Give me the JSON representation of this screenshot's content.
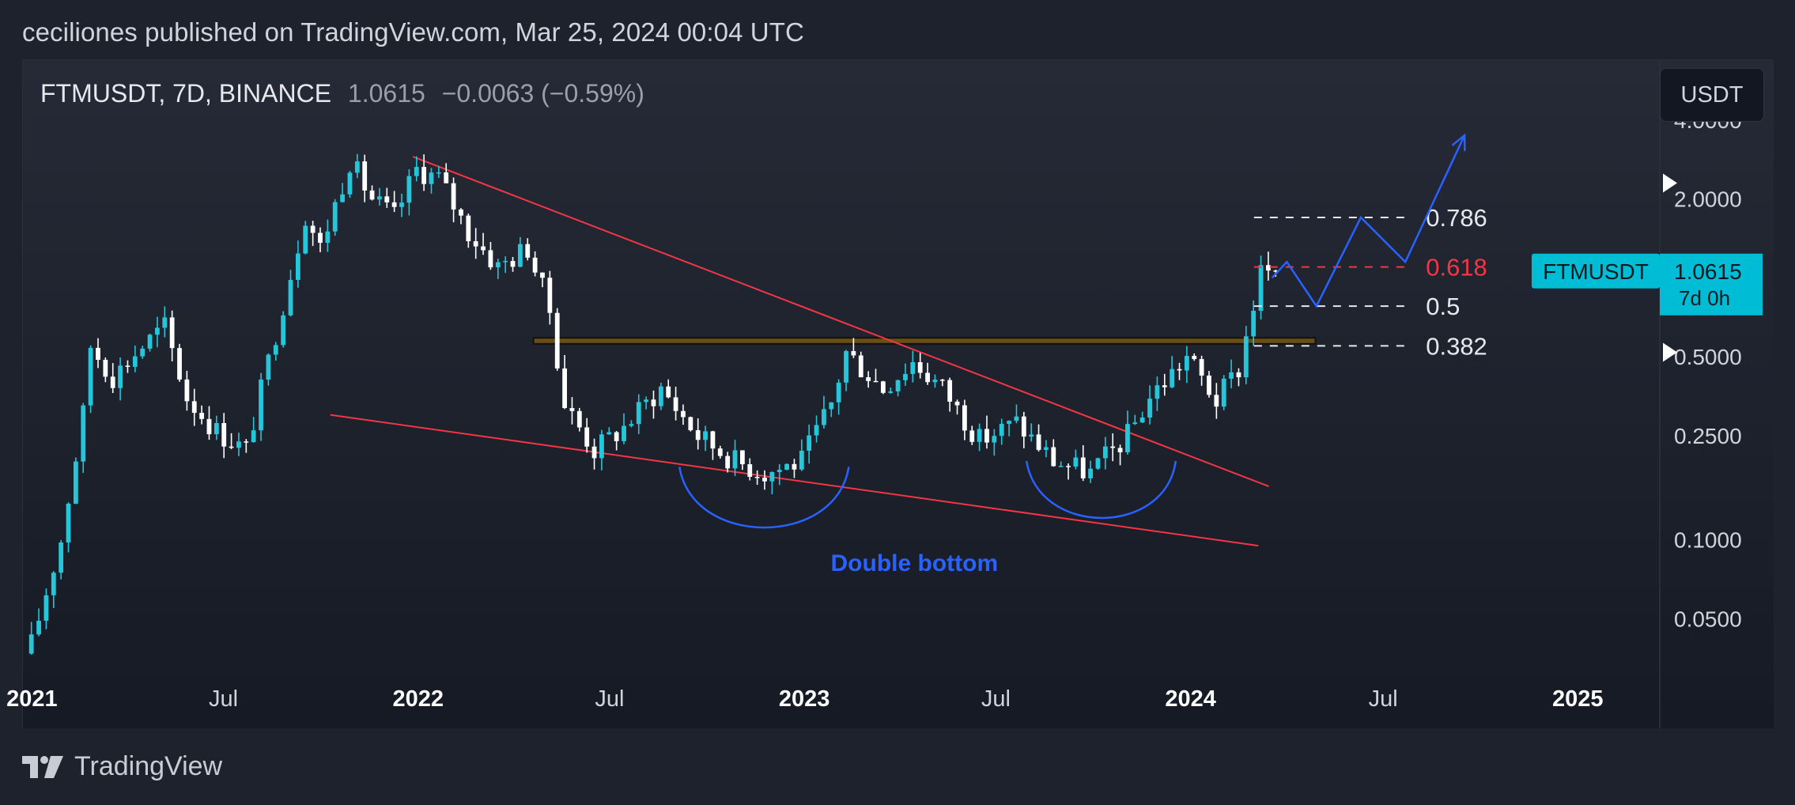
{
  "publication": {
    "text": "ceciliones published on TradingView.com, Mar 25, 2024 00:04 UTC"
  },
  "symbol": {
    "name": "FTMUSDT, 7D, BINANCE",
    "price": "1.0615",
    "change": "−0.0063 (−0.59%)"
  },
  "currency_button": "USDT",
  "footer": {
    "brand": "TradingView"
  },
  "colors": {
    "background": "#1e222d",
    "up_candle": "#26c6da",
    "down_candle": "#ffffff",
    "trendline": "#f23645",
    "drawing": "#2962ff",
    "resistance_box": "#6b4e16",
    "fib_white": "#e6e8ee",
    "fib_red": "#f23645",
    "price_label": "#00bcd4"
  },
  "chart_data": {
    "type": "candlestick",
    "title": "FTMUSDT, 7D, BINANCE",
    "y_scale": "log",
    "ylim": [
      0.03,
      5.5
    ],
    "xlim": [
      "2020-12-28",
      "2025-03-15"
    ],
    "y_ticks": [
      "4.0000",
      "2.0000",
      "0.5000",
      "0.2500",
      "0.1000",
      "0.0500"
    ],
    "y_tick_values": [
      4.0,
      2.0,
      0.5,
      0.25,
      0.1,
      0.05
    ],
    "x_ticks": [
      {
        "label": "2021",
        "date": "2021-01-01",
        "bold": true
      },
      {
        "label": "Jul",
        "date": "2021-07-01",
        "bold": false
      },
      {
        "label": "2022",
        "date": "2022-01-01",
        "bold": true
      },
      {
        "label": "Jul",
        "date": "2022-07-01",
        "bold": false
      },
      {
        "label": "2023",
        "date": "2023-01-01",
        "bold": true
      },
      {
        "label": "Jul",
        "date": "2023-07-01",
        "bold": false
      },
      {
        "label": "2024",
        "date": "2024-01-01",
        "bold": true
      },
      {
        "label": "Jul",
        "date": "2024-07-01",
        "bold": false
      },
      {
        "label": "2025",
        "date": "2025-01-01",
        "bold": true
      }
    ],
    "candle_start": "2020-12-28",
    "candle_interval_days": 7,
    "close_path": [
      [
        "2020-12-28",
        0.04
      ],
      [
        "2021-01-25",
        0.1
      ],
      [
        "2021-02-15",
        0.3
      ],
      [
        "2021-02-22",
        0.55
      ],
      [
        "2021-03-15",
        0.42
      ],
      [
        "2021-04-12",
        0.55
      ],
      [
        "2021-05-03",
        0.65
      ],
      [
        "2021-05-24",
        0.35
      ],
      [
        "2021-06-21",
        0.26
      ],
      [
        "2021-07-19",
        0.22
      ],
      [
        "2021-08-23",
        0.8
      ],
      [
        "2021-09-13",
        1.75
      ],
      [
        "2021-09-27",
        1.3
      ],
      [
        "2021-10-25",
        2.8
      ],
      [
        "2021-11-15",
        2.0
      ],
      [
        "2021-12-06",
        1.7
      ],
      [
        "2021-12-27",
        2.6
      ],
      [
        "2022-01-17",
        2.4
      ],
      [
        "2022-02-14",
        1.5
      ],
      [
        "2022-03-14",
        1.1
      ],
      [
        "2022-04-11",
        1.3
      ],
      [
        "2022-05-02",
        0.75
      ],
      [
        "2022-05-16",
        0.33
      ],
      [
        "2022-06-13",
        0.22
      ],
      [
        "2022-07-11",
        0.27
      ],
      [
        "2022-08-15",
        0.38
      ],
      [
        "2022-09-19",
        0.25
      ],
      [
        "2022-10-24",
        0.2
      ],
      [
        "2022-11-21",
        0.18
      ],
      [
        "2022-12-26",
        0.2
      ],
      [
        "2023-01-23",
        0.33
      ],
      [
        "2023-02-06",
        0.52
      ],
      [
        "2023-03-13",
        0.38
      ],
      [
        "2023-04-10",
        0.48
      ],
      [
        "2023-05-08",
        0.38
      ],
      [
        "2023-06-12",
        0.24
      ],
      [
        "2023-07-17",
        0.28
      ],
      [
        "2023-08-21",
        0.2
      ],
      [
        "2023-09-25",
        0.18
      ],
      [
        "2023-10-30",
        0.25
      ],
      [
        "2023-11-20",
        0.35
      ],
      [
        "2023-12-25",
        0.5
      ],
      [
        "2024-01-22",
        0.34
      ],
      [
        "2024-02-12",
        0.45
      ],
      [
        "2024-03-04",
        1.05
      ],
      [
        "2024-03-18",
        1.0615
      ]
    ],
    "trendlines": [
      {
        "name": "upper-trendline",
        "from": [
          "2021-12-27",
          2.9
        ],
        "to": [
          "2024-03-15",
          0.16
        ]
      },
      {
        "name": "lower-trendline",
        "from": [
          "2021-10-10",
          0.3
        ],
        "to": [
          "2024-03-05",
          0.095
        ]
      }
    ],
    "resistance_zone": {
      "from": "2022-04-20",
      "to": "2024-04-28",
      "low": 0.56,
      "high": 0.59
    },
    "fib_levels": [
      {
        "label": "0.786",
        "value": 1.7,
        "color": "white"
      },
      {
        "label": "0.618",
        "value": 1.1,
        "color": "red"
      },
      {
        "label": "0.5",
        "value": 0.78,
        "color": "white"
      },
      {
        "label": "0.382",
        "value": 0.55,
        "color": "white"
      }
    ],
    "fib_range": {
      "from": "2024-03-01",
      "to": "2024-07-25"
    },
    "projection_path": [
      [
        "2024-03-18",
        1.0
      ],
      [
        "2024-04-01",
        1.15
      ],
      [
        "2024-04-29",
        0.78
      ],
      [
        "2024-06-10",
        1.7
      ],
      [
        "2024-07-22",
        1.15
      ],
      [
        "2024-09-16",
        3.5
      ]
    ],
    "bottom_arcs": [
      {
        "name": "first-bottom-arc",
        "from": [
          "2022-09-05",
          0.19
        ],
        "mid": [
          "2022-11-25",
          0.1
        ],
        "to": [
          "2023-02-12",
          0.19
        ]
      },
      {
        "name": "second-bottom-arc",
        "from": [
          "2023-07-30",
          0.2
        ],
        "mid": [
          "2023-10-15",
          0.11
        ],
        "to": [
          "2023-12-18",
          0.2
        ]
      }
    ],
    "annotation": {
      "text": "Double bottom",
      "date": "2023-04-15",
      "value": 0.076
    },
    "last_price_label": {
      "symbol": "FTMUSDT",
      "price": "1.0615",
      "countdown": "7d 0h",
      "value": 1.0615
    },
    "right_markers": [
      2.3,
      0.52
    ]
  }
}
